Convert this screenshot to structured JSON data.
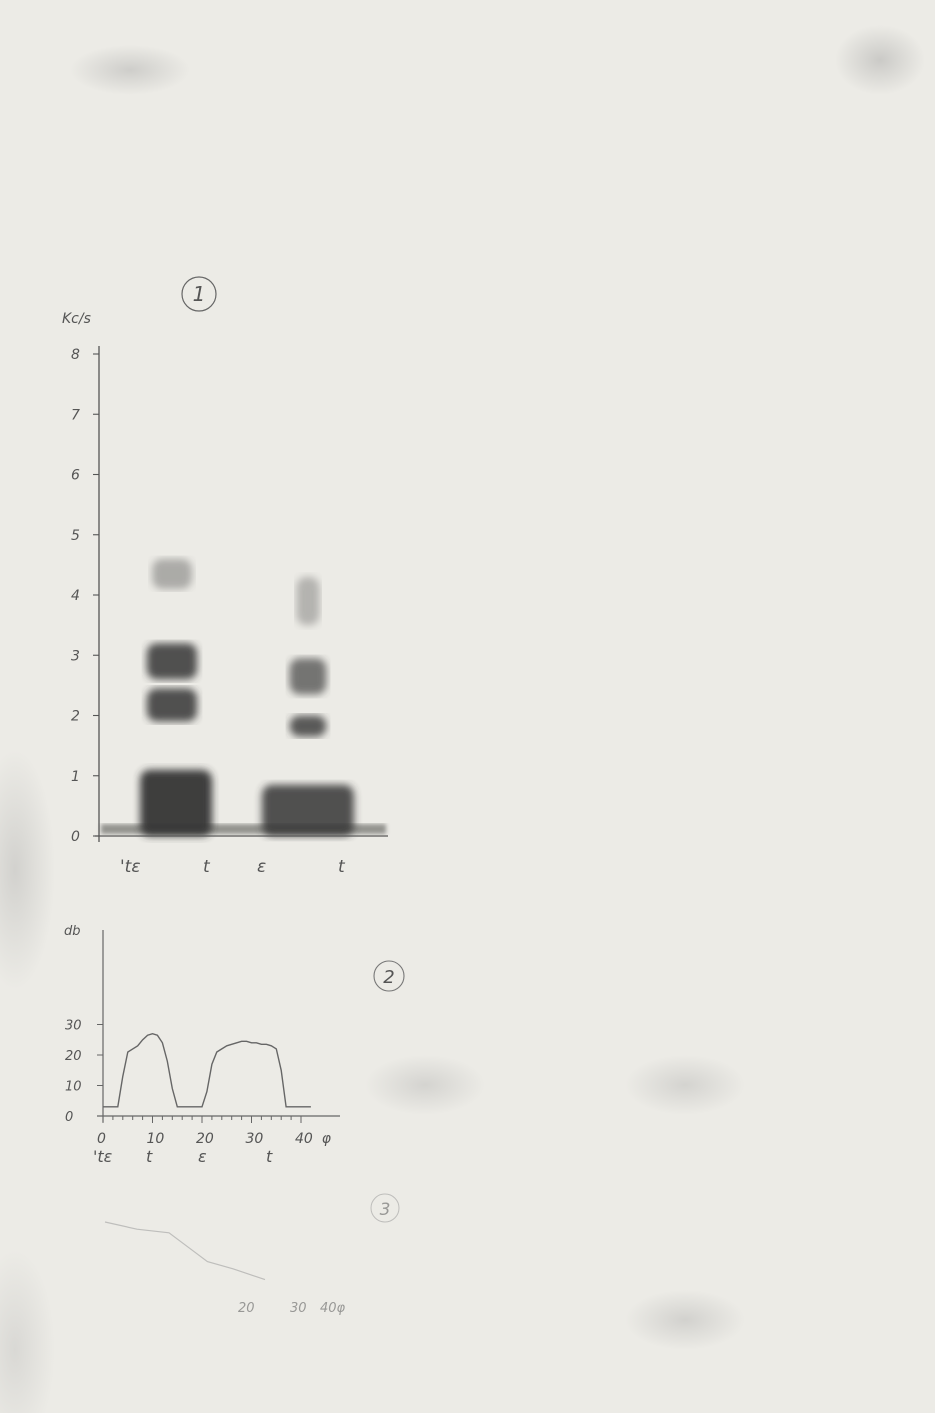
{
  "chart_data": [
    {
      "type": "heatmap",
      "panel_number": "1",
      "ylabel": "Kc/s",
      "y_ticks": [
        "0",
        "1",
        "2",
        "3",
        "4",
        "5",
        "6",
        "7",
        "8"
      ],
      "ylim": [
        0,
        8
      ],
      "x_segment_labels": [
        "'tε",
        "t",
        "ε",
        "t"
      ],
      "description_free": true,
      "formant_bands": [
        {
          "syllable": 1,
          "low_khz": 0.0,
          "high_khz": 1.1,
          "intensity": 0.95
        },
        {
          "syllable": 1,
          "low_khz": 1.9,
          "high_khz": 2.45,
          "intensity": 0.85
        },
        {
          "syllable": 1,
          "low_khz": 2.6,
          "high_khz": 3.2,
          "intensity": 0.85
        },
        {
          "syllable": 1,
          "low_khz": 4.1,
          "high_khz": 4.6,
          "intensity": 0.35
        },
        {
          "syllable": 2,
          "low_khz": 0.0,
          "high_khz": 0.85,
          "intensity": 0.85
        },
        {
          "syllable": 2,
          "low_khz": 1.65,
          "high_khz": 2.0,
          "intensity": 0.8
        },
        {
          "syllable": 2,
          "low_khz": 2.35,
          "high_khz": 2.95,
          "intensity": 0.65
        },
        {
          "syllable": 2,
          "low_khz": 3.5,
          "high_khz": 4.3,
          "intensity": 0.3
        }
      ]
    },
    {
      "type": "line",
      "panel_number": "2",
      "ylabel": "db",
      "y_ticks": [
        "0",
        "10",
        "20",
        "30"
      ],
      "ylim": [
        0,
        35
      ],
      "x_ticks": [
        "0",
        "10",
        "20",
        "30",
        "40"
      ],
      "x_unit": "φ",
      "xlim": [
        0,
        45
      ],
      "x_segment_labels": [
        "'tε",
        "t",
        "ε",
        "t"
      ],
      "x": [
        0,
        2,
        3,
        4,
        5,
        7,
        8,
        9,
        10,
        11,
        12,
        13,
        14,
        15,
        16,
        17,
        18,
        19,
        20,
        21,
        22,
        23,
        24,
        25,
        26,
        27,
        28,
        29,
        30,
        31,
        32,
        33,
        34,
        35,
        36,
        37,
        38,
        39,
        40,
        42
      ],
      "y": [
        3,
        3,
        3,
        13,
        21,
        23,
        25,
        26.5,
        27,
        26.5,
        24,
        18,
        9,
        3,
        3,
        3,
        3,
        3,
        3,
        8,
        17,
        21,
        22,
        23,
        23.5,
        24,
        24.5,
        24.5,
        24,
        24,
        23.5,
        23.5,
        23,
        22,
        15,
        3,
        3,
        3,
        3,
        3
      ]
    },
    {
      "type": "line",
      "panel_number": "3",
      "faded": true,
      "x_ticks_visible": [
        "20",
        "30",
        "40φ"
      ],
      "x": [
        0,
        5,
        10,
        13,
        16,
        20,
        25
      ],
      "y": [
        0,
        -1,
        -1.5,
        -3.5,
        -5.5,
        -6.5,
        -8
      ]
    }
  ]
}
